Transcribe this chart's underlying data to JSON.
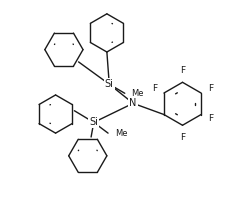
{
  "bg_color": "#ffffff",
  "line_color": "#1a1a1a",
  "line_width": 1.0,
  "font_size_si": 7.0,
  "font_size_n": 7.0,
  "font_size_f": 6.5,
  "font_size_me": 6.0,
  "fig_width": 2.4,
  "fig_height": 2.09,
  "dpi": 100,
  "xlim": [
    0,
    10
  ],
  "ylim": [
    0,
    8.7
  ]
}
